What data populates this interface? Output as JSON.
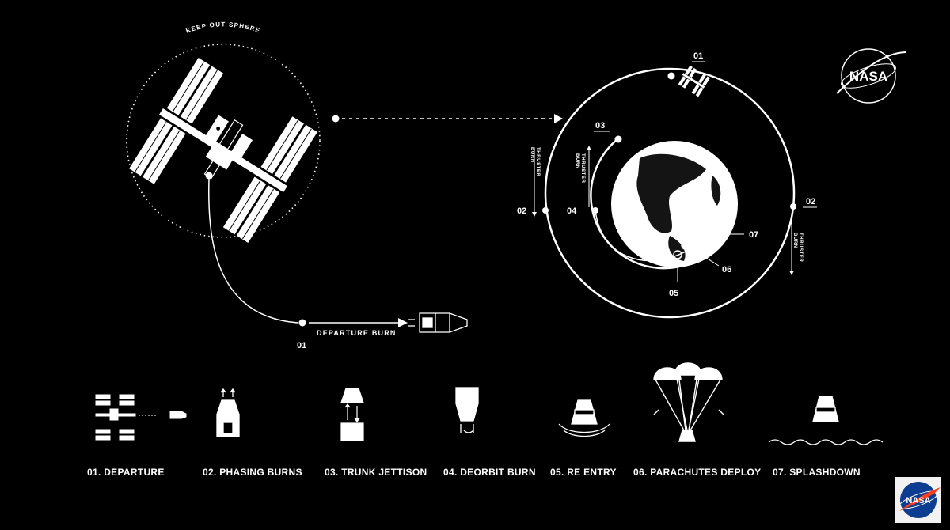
{
  "keep_out_sphere": "KEEP OUT SPHERE",
  "departure_burn": "DEPARTURE BURN",
  "thruster_burn_1": "THRUSTER",
  "thruster_burn_2": "BURN",
  "nasa_logo_text": "NASA",
  "orbit_markers": {
    "m01_top": "01",
    "m01_bottom": "01",
    "m02_left": "02",
    "m02_right": "02",
    "m03": "03",
    "m04": "04",
    "m05": "05",
    "m06": "06",
    "m07": "07"
  },
  "steps": [
    {
      "label": "01. DEPARTURE"
    },
    {
      "label": "02. PHASING BURNS"
    },
    {
      "label": "03. TRUNK JETTISON"
    },
    {
      "label": "04. DEORBIT BURN"
    },
    {
      "label": "05. RE ENTRY"
    },
    {
      "label": "06. PARACHUTES DEPLOY"
    },
    {
      "label": "07. SPLASHDOWN"
    }
  ],
  "colors": {
    "background": "#000000",
    "line": "#ffffff",
    "nasa_blue": "#0b3d91",
    "nasa_red": "#fc3d21"
  }
}
